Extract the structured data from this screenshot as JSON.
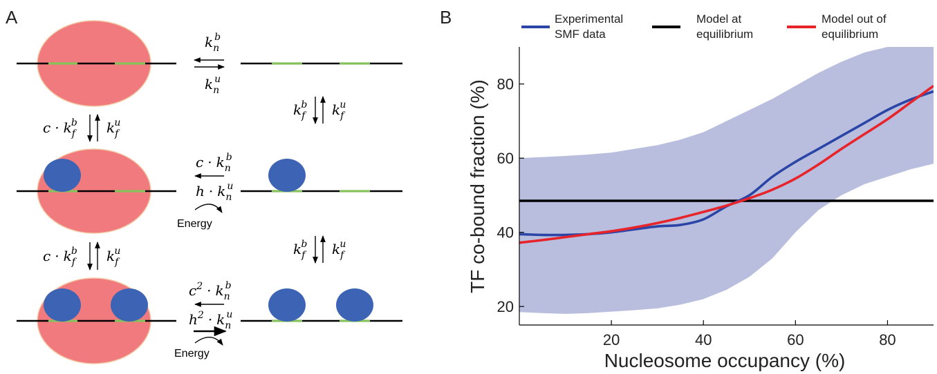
{
  "panel_a": {
    "label": "A",
    "rate_nuc_bind_base": "k",
    "rate_nuc_bind_sub": "n",
    "rate_nuc_bind_sup": "b",
    "rate_nuc_unbind_base": "k",
    "rate_nuc_unbind_sub": "n",
    "rate_nuc_unbind_sup": "u",
    "rate_tf_bind_base": "k",
    "rate_tf_bind_sub": "f",
    "rate_tf_bind_sup": "b",
    "rate_tf_unbind_base": "k",
    "rate_tf_unbind_sub": "f",
    "rate_tf_unbind_sup": "u",
    "coop_factor": "c",
    "hill_factor": "h",
    "dot": "·",
    "square": "2",
    "energy_label": "Energy",
    "colors": {
      "nucleosome": "#f07a7d",
      "nucleosome_edge": "#f3c9a6",
      "tf": "#3d64b4",
      "site": "#86c25c",
      "dna": "#000000"
    }
  },
  "panel_b": {
    "label": "B",
    "legend": [
      {
        "name": "Experimental",
        "name2": "SMF data",
        "color": "#2b45a6"
      },
      {
        "name": "Model at",
        "name2": "equilibrium",
        "color": "#000000"
      },
      {
        "name": "Model out of",
        "name2": "equilibrium",
        "color": "#e8242b"
      }
    ],
    "band_color": "#b9bedf"
  },
  "chart_data": {
    "type": "line",
    "xlabel": "Nucleosome occupancy (%)",
    "ylabel": "TF co-bound fraction (%)",
    "xlim": [
      0,
      90
    ],
    "ylim": [
      15,
      90
    ],
    "xticks": [
      20,
      40,
      60,
      80
    ],
    "yticks": [
      20,
      40,
      60,
      80
    ],
    "grid": false,
    "legend_position": "top",
    "series": [
      {
        "name": "Experimental SMF data",
        "x": [
          0,
          5,
          10,
          15,
          20,
          25,
          30,
          35,
          40,
          45,
          50,
          55,
          60,
          65,
          70,
          75,
          80,
          85,
          90
        ],
        "y": [
          39.5,
          39.3,
          39.3,
          39.5,
          40,
          40.8,
          41.6,
          42,
          43.5,
          47,
          50,
          55,
          59,
          62.5,
          66,
          69.5,
          73,
          75.8,
          78
        ]
      },
      {
        "name": "Model at equilibrium",
        "x": [
          0,
          90
        ],
        "y": [
          48.5,
          48.5
        ]
      },
      {
        "name": "Model out of equilibrium",
        "x": [
          0,
          5,
          10,
          15,
          20,
          25,
          30,
          35,
          40,
          45,
          50,
          55,
          60,
          65,
          70,
          75,
          80,
          85,
          90
        ],
        "y": [
          37.2,
          37.9,
          38.7,
          39.5,
          40.3,
          41.3,
          42.5,
          43.9,
          45.5,
          47.2,
          49.2,
          51.5,
          54.5,
          58.3,
          62.5,
          66.5,
          70.5,
          75,
          79.5
        ]
      }
    ],
    "band": {
      "name": "",
      "x": [
        0,
        5,
        10,
        15,
        20,
        25,
        30,
        35,
        40,
        45,
        50,
        55,
        60,
        65,
        70,
        75,
        80,
        85,
        90
      ],
      "upper": [
        60,
        60.3,
        60.6,
        61,
        61.5,
        62.5,
        63.5,
        65,
        67,
        70,
        73,
        76,
        79.5,
        83,
        86,
        88.5,
        90,
        90,
        90
      ],
      "lower": [
        18.5,
        18.2,
        18,
        18.2,
        18.6,
        19,
        19.5,
        20.5,
        22,
        24.5,
        28,
        33,
        40,
        46,
        50,
        53,
        55,
        57,
        58.5
      ]
    }
  }
}
